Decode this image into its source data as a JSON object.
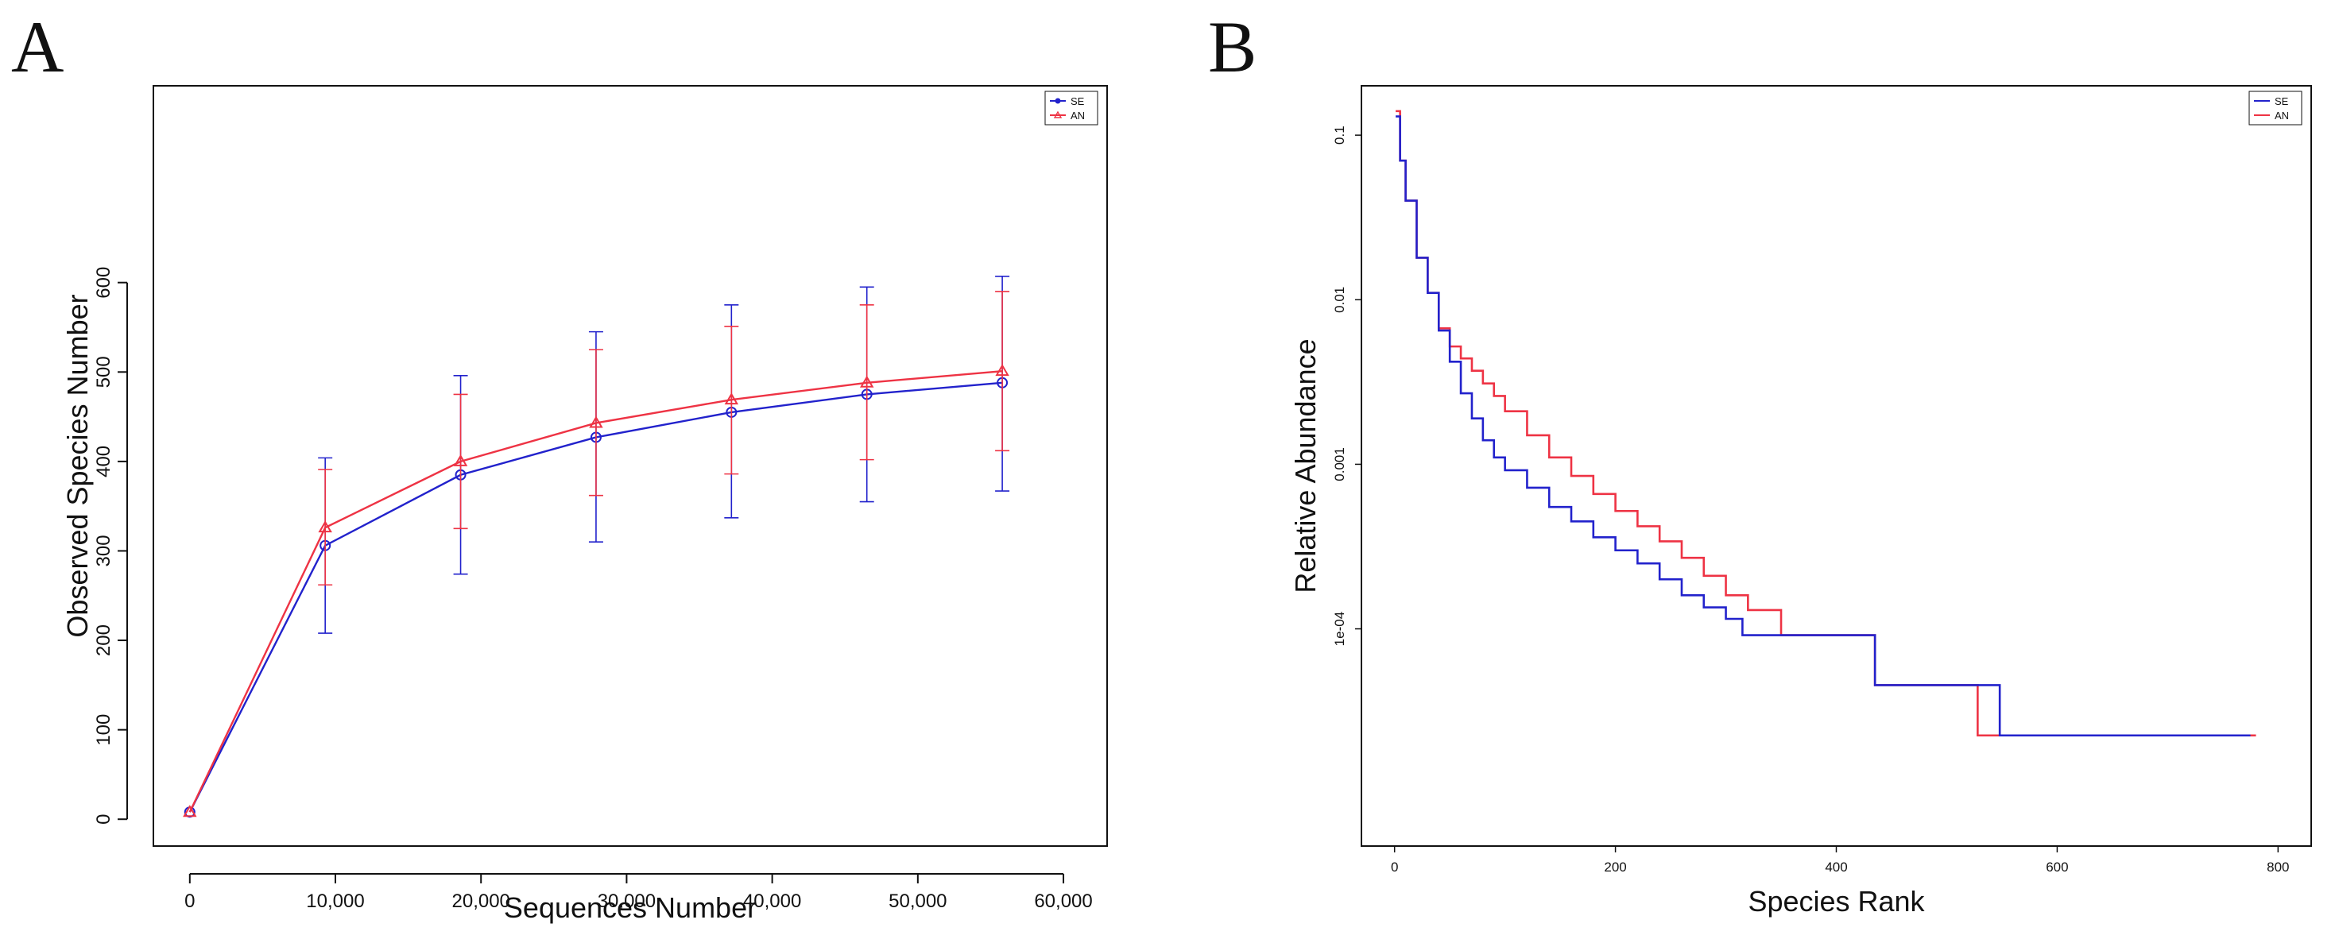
{
  "figure_labels": {
    "a": "A",
    "b": "B"
  },
  "colors": {
    "SE": "#2222cc",
    "AN": "#ee3344",
    "axis": "#111111"
  },
  "chart_data": [
    {
      "type": "line",
      "panel": "A",
      "title": "",
      "xlabel": "Sequences Number",
      "ylabel": "Observed Species Number",
      "xlim": [
        -2500,
        63000
      ],
      "ylim": [
        -30,
        820
      ],
      "x_ticks": [
        0,
        10000,
        20000,
        30000,
        40000,
        50000,
        60000
      ],
      "x_tick_labels": [
        "0",
        "10,000",
        "20,000",
        "30,000",
        "40,000",
        "50,000",
        "60,000"
      ],
      "y_ticks": [
        0,
        100,
        200,
        300,
        400,
        500,
        600
      ],
      "y_tick_labels": [
        "0",
        "100",
        "200",
        "300",
        "400",
        "500",
        "600"
      ],
      "legend": [
        "SE",
        "AN"
      ],
      "legend_position": "top-right",
      "series": [
        {
          "name": "SE",
          "marker": "circle",
          "x": [
            0,
            9300,
            18600,
            27900,
            37200,
            46500,
            55800
          ],
          "y": [
            8,
            306,
            385,
            427,
            455,
            475,
            488
          ],
          "err_low": [
            8,
            208,
            274,
            310,
            337,
            355,
            367
          ],
          "err_high": [
            8,
            404,
            496,
            545,
            575,
            595,
            607
          ]
        },
        {
          "name": "AN",
          "marker": "triangle",
          "x": [
            0,
            9300,
            18600,
            27900,
            37200,
            46500,
            55800
          ],
          "y": [
            8,
            326,
            400,
            443,
            469,
            488,
            501
          ],
          "err_low": [
            8,
            262,
            325,
            362,
            386,
            402,
            412
          ],
          "err_high": [
            8,
            391,
            475,
            525,
            551,
            575,
            590
          ]
        }
      ]
    },
    {
      "type": "line",
      "panel": "B",
      "title": "",
      "xlabel": "Species Rank",
      "ylabel": "Relative Abundance",
      "y_scale": "log",
      "xlim": [
        -30,
        830
      ],
      "ylim_log10": [
        -5.32,
        -0.7
      ],
      "x_ticks": [
        0,
        200,
        400,
        600,
        800
      ],
      "x_tick_labels": [
        "0",
        "200",
        "400",
        "600",
        "800"
      ],
      "y_ticks": [
        0.1,
        0.01,
        0.001,
        0.0001
      ],
      "y_tick_labels": [
        "0.1",
        "0.01",
        "0.001",
        "1e-04"
      ],
      "legend": [
        "SE",
        "AN"
      ],
      "legend_position": "top-right",
      "series": [
        {
          "name": "SE",
          "rank": [
            1,
            5,
            10,
            20,
            30,
            40,
            50,
            60,
            70,
            80,
            90,
            100,
            120,
            140,
            160,
            180,
            200,
            220,
            240,
            260,
            280,
            300,
            315,
            375,
            435,
            545,
            548,
            775
          ],
          "abundance": [
            0.13,
            0.07,
            0.04,
            0.018,
            0.011,
            0.0065,
            0.0042,
            0.0027,
            0.0019,
            0.0014,
            0.0011,
            0.00092,
            0.00072,
            0.00055,
            0.00045,
            0.00036,
            0.0003,
            0.00025,
            0.0002,
            0.00016,
            0.000135,
            0.000115,
            9.15e-05,
            9.15e-05,
            4.55e-05,
            4.55e-05,
            2.25e-05,
            2.25e-05
          ]
        },
        {
          "name": "AN",
          "rank": [
            1,
            5,
            10,
            20,
            30,
            40,
            50,
            60,
            70,
            80,
            90,
            100,
            120,
            140,
            160,
            180,
            200,
            220,
            240,
            260,
            280,
            300,
            320,
            350,
            400,
            435,
            525,
            528,
            780
          ],
          "abundance": [
            0.14,
            0.07,
            0.04,
            0.018,
            0.011,
            0.0067,
            0.0052,
            0.0044,
            0.0037,
            0.0031,
            0.0026,
            0.0021,
            0.0015,
            0.0011,
            0.00085,
            0.00066,
            0.00052,
            0.00042,
            0.00034,
            0.00027,
            0.00021,
            0.00016,
            0.00013,
            9.15e-05,
            9.15e-05,
            4.55e-05,
            4.55e-05,
            2.25e-05,
            2.25e-05
          ]
        }
      ]
    }
  ]
}
